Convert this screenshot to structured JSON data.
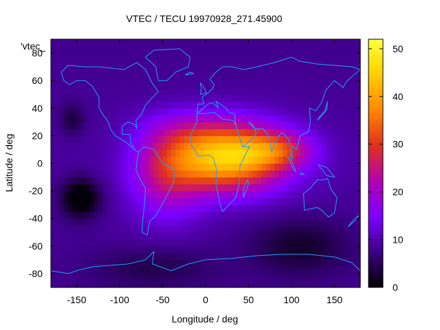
{
  "chart_data": {
    "type": "heatmap",
    "title": "VTEC / TECU 19970928_271.45900",
    "xlabel": "Longitude / deg",
    "ylabel": "Latitude / deg",
    "key_label": "'vtec_",
    "xlim": [
      -180,
      180
    ],
    "ylim": [
      -90,
      90
    ],
    "xticks": [
      -150,
      -100,
      -50,
      0,
      50,
      100,
      150
    ],
    "yticks": [
      -80,
      -60,
      -40,
      -20,
      0,
      20,
      40,
      60,
      80
    ],
    "colorbar": {
      "min": 0,
      "max": 52,
      "ticks": [
        0,
        10,
        20,
        30,
        40,
        50
      ]
    },
    "palette": [
      "#000000",
      "#3a0080",
      "#7b00ff",
      "#b000b8",
      "#e03020",
      "#ff8a00",
      "#ffd800",
      "#ffff40"
    ],
    "coastline_color": "#1ea0ff",
    "grid": false,
    "field_model": {
      "description": "Estimated VTEC field: broad equatorial maximum centered near 25E, 5N (~50 TECU) with crest extending over South America to ~-70 and toward India; minima in south-central Pacific and high southern latitudes.",
      "peak": {
        "lon": 25,
        "lat": 5,
        "value": 50
      }
    }
  }
}
